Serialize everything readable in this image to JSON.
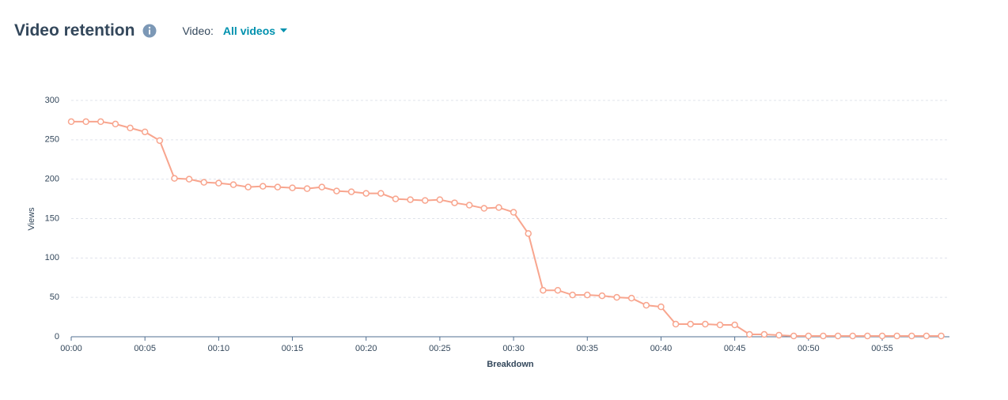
{
  "header": {
    "filter_label": "Video:",
    "filter_value": "All videos"
  },
  "chart_data": {
    "type": "line",
    "title": "Video retention",
    "x_label": "Breakdown",
    "y_label": "Views",
    "categories": [
      "00:00",
      null,
      null,
      null,
      null,
      "00:05",
      null,
      null,
      null,
      null,
      "00:10",
      null,
      null,
      null,
      null,
      "00:15",
      null,
      null,
      null,
      null,
      "00:20",
      null,
      null,
      null,
      null,
      "00:25",
      null,
      null,
      null,
      null,
      "00:30",
      null,
      null,
      null,
      null,
      "00:35",
      null,
      null,
      null,
      null,
      "00:40",
      null,
      null,
      null,
      null,
      "00:45",
      null,
      null,
      null,
      null,
      "00:50",
      null,
      null,
      null,
      null,
      "00:55",
      null,
      null,
      null,
      null
    ],
    "values": [
      273,
      273,
      273,
      270,
      265,
      260,
      249,
      201,
      200,
      196,
      195,
      193,
      190,
      191,
      190,
      189,
      188,
      190,
      185,
      184,
      182,
      182,
      175,
      174,
      173,
      174,
      170,
      167,
      163,
      164,
      158,
      131,
      59,
      59,
      53,
      53,
      52,
      50,
      49,
      40,
      38,
      16,
      16,
      16,
      15,
      15,
      3,
      3,
      2,
      1,
      1,
      1,
      1,
      1,
      1,
      1,
      1,
      1,
      1,
      1
    ],
    "color": "#f8a58e",
    "ylim": [
      0,
      300
    ],
    "yticks": [
      0,
      50,
      100,
      150,
      200,
      250,
      300
    ],
    "grid": true
  }
}
